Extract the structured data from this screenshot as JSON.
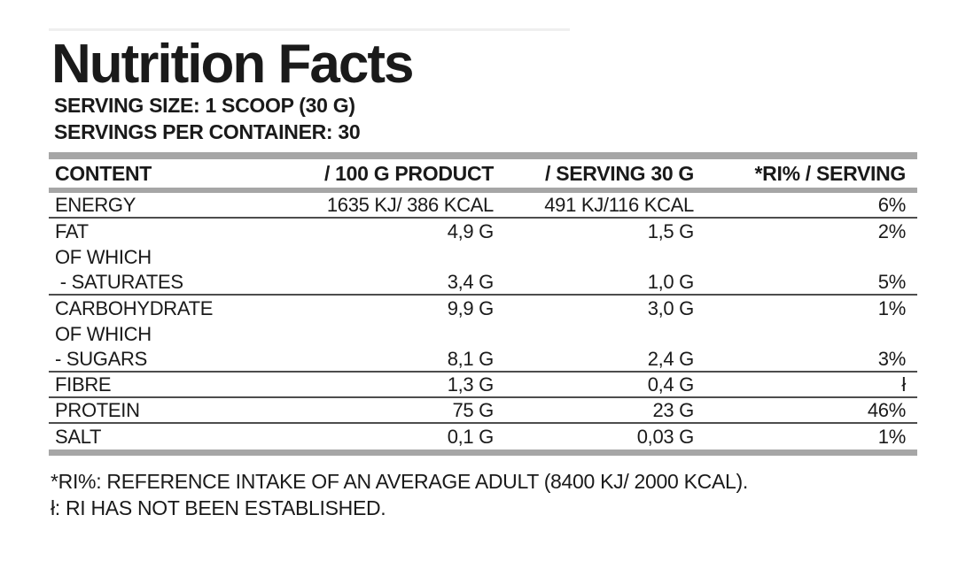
{
  "header": {
    "title": "Nutrition Facts",
    "serving_size": "SERVING SIZE: 1 SCOOP (30 G)",
    "servings_per_container": "SERVINGS PER CONTAINER: 30"
  },
  "table": {
    "columns": [
      "CONTENT",
      "/ 100 G PRODUCT",
      "/ SERVING 30 G",
      "*RI% / SERVING"
    ],
    "rows": [
      {
        "content": "ENERGY",
        "per_100g": "1635 KJ/ 386 KCAL",
        "per_serving": "491 KJ/116 KCAL",
        "ri_percent": "6%",
        "divider": true
      },
      {
        "content": "FAT",
        "per_100g": "4,9 G",
        "per_serving": "1,5 G",
        "ri_percent": "2%",
        "divider": false
      },
      {
        "content": "OF WHICH",
        "per_100g": "",
        "per_serving": "",
        "ri_percent": "",
        "divider": false
      },
      {
        "content": " - SATURATES",
        "per_100g": "3,4 G",
        "per_serving": "1,0 G",
        "ri_percent": "5%",
        "divider": true
      },
      {
        "content": "CARBOHYDRATE",
        "per_100g": "9,9 G",
        "per_serving": "3,0 G",
        "ri_percent": "1%",
        "divider": false
      },
      {
        "content": "OF WHICH",
        "per_100g": "",
        "per_serving": "",
        "ri_percent": "",
        "divider": false
      },
      {
        "content": "- SUGARS",
        "per_100g": "8,1 G",
        "per_serving": "2,4 G",
        "ri_percent": "3%",
        "divider": true
      },
      {
        "content": "FIBRE",
        "per_100g": "1,3 G",
        "per_serving": "0,4 G",
        "ri_percent": "ł",
        "divider": true
      },
      {
        "content": "PROTEIN",
        "per_100g": "75 G",
        "per_serving": "23 G",
        "ri_percent": "46%",
        "divider": true
      },
      {
        "content": "SALT",
        "per_100g": "0,1 G",
        "per_serving": "0,03 G",
        "ri_percent": "1%",
        "divider": false
      }
    ]
  },
  "footnotes": [
    "*RI%: REFERENCE INTAKE OF AN AVERAGE ADULT (8400 KJ/ 2000 KCAL).",
    "ł: RI HAS NOT BEEN ESTABLISHED."
  ],
  "colors": {
    "text": "#1a1a1a",
    "gray_bar": "#a6a6a6",
    "row_divider": "#4d4d4d",
    "background": "#ffffff"
  }
}
